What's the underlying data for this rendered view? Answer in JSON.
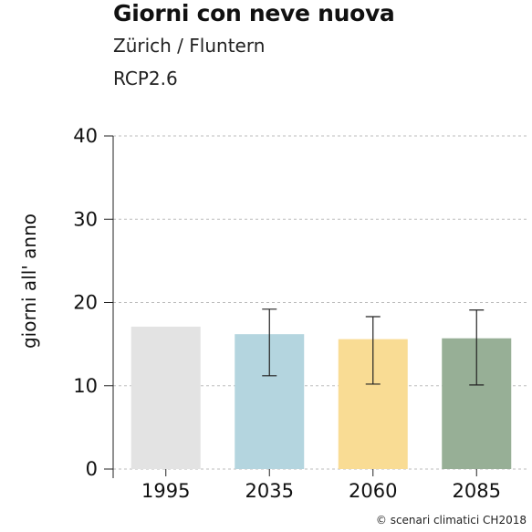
{
  "header": {
    "title": "Giorni con neve nuova",
    "location": "Zürich / Fluntern",
    "scenario": "RCP2.6"
  },
  "footer": {
    "credit": "© scenari climatici CH2018"
  },
  "chart_data": {
    "type": "bar",
    "title": "Giorni con neve nuova",
    "ylabel": "giorni all' anno",
    "xlabel": "",
    "ylim": [
      0,
      40
    ],
    "yticks": [
      0,
      10,
      20,
      30,
      40
    ],
    "grid": true,
    "categories": [
      "1995",
      "2035",
      "2060",
      "2085"
    ],
    "values": [
      17.1,
      16.2,
      15.6,
      15.7
    ],
    "error_low": [
      null,
      11.2,
      10.2,
      10.1
    ],
    "error_high": [
      null,
      19.2,
      18.3,
      19.1
    ],
    "colors": [
      "#e3e3e3",
      "#b4d5df",
      "#f9dc94",
      "#97af96"
    ]
  }
}
